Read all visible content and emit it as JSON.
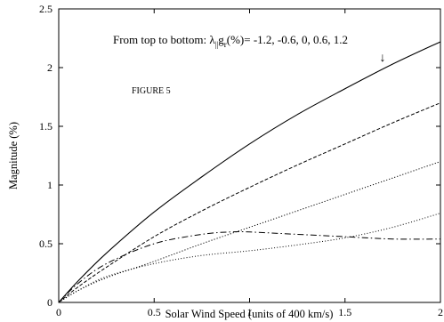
{
  "chart_data": {
    "type": "line",
    "xlabel": "Solar Wind Speed (units of 400 km/s)",
    "ylabel": "Magnitude (%)",
    "xlim": [
      0,
      2
    ],
    "ylim": [
      0,
      2.5
    ],
    "x_ticks": [
      "0",
      "0.5",
      "1",
      "1.5",
      "2"
    ],
    "y_ticks": [
      "0",
      "0.5",
      "1",
      "1.5",
      "2",
      "2.5"
    ],
    "x_tick_values": [
      0,
      0.5,
      1,
      1.5,
      2
    ],
    "y_tick_values": [
      0,
      0.5,
      1,
      1.5,
      2,
      2.5
    ],
    "grid": false,
    "annotation": {
      "text_main": "From top to bottom: λ",
      "sub1": "||",
      "text_g": "g",
      "sub2": "r",
      "text_rest": "(%)= -1.2, -0.6, 0, 0.6, 1.2",
      "arrow": "↓"
    },
    "figure_label": "FIGURE 5",
    "series": [
      {
        "style": "solid",
        "x": [
          0,
          0.1,
          0.25,
          0.5,
          0.75,
          1.0,
          1.25,
          1.5,
          1.75,
          2.0
        ],
        "y": [
          0,
          0.18,
          0.42,
          0.77,
          1.07,
          1.35,
          1.6,
          1.82,
          2.03,
          2.22
        ]
      },
      {
        "style": "dashed",
        "x": [
          0,
          0.1,
          0.25,
          0.5,
          0.75,
          1.0,
          1.25,
          1.5,
          1.75,
          2.0
        ],
        "y": [
          0,
          0.13,
          0.3,
          0.56,
          0.78,
          0.98,
          1.17,
          1.35,
          1.53,
          1.7
        ]
      },
      {
        "style": "dotted-dense",
        "x": [
          0,
          0.1,
          0.25,
          0.5,
          0.75,
          1.0,
          1.25,
          1.5,
          1.75,
          2.0
        ],
        "y": [
          0,
          0.1,
          0.21,
          0.35,
          0.5,
          0.64,
          0.78,
          0.92,
          1.06,
          1.2
        ]
      },
      {
        "style": "dotted-sparse",
        "x": [
          0,
          0.1,
          0.25,
          0.5,
          0.75,
          1.0,
          1.25,
          1.5,
          1.75,
          2.0
        ],
        "y": [
          0,
          0.1,
          0.22,
          0.33,
          0.4,
          0.44,
          0.49,
          0.55,
          0.64,
          0.76
        ]
      },
      {
        "style": "dash-dot",
        "x": [
          0,
          0.1,
          0.25,
          0.5,
          0.75,
          0.9,
          1.0,
          1.25,
          1.5,
          1.75,
          2.0
        ],
        "y": [
          0,
          0.16,
          0.33,
          0.5,
          0.58,
          0.6,
          0.6,
          0.58,
          0.56,
          0.54,
          0.54
        ]
      }
    ]
  }
}
